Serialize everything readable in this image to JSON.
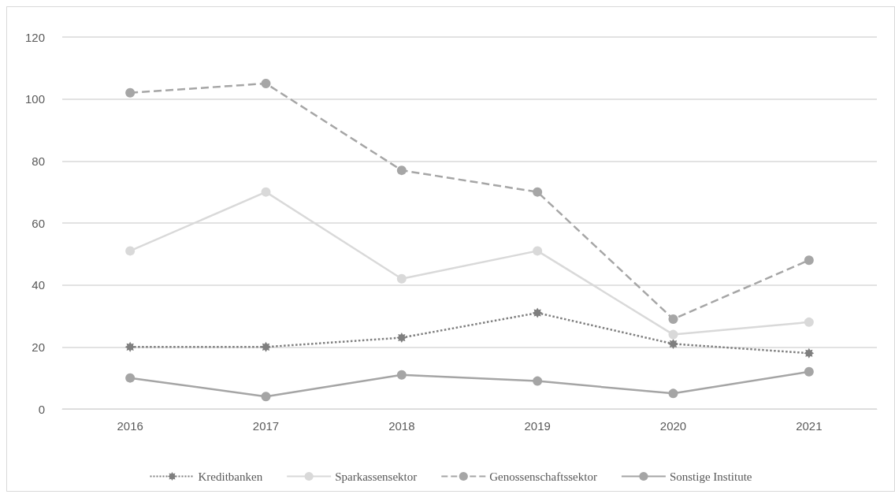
{
  "chart_data": {
    "type": "line",
    "categories": [
      "2016",
      "2017",
      "2018",
      "2019",
      "2020",
      "2021"
    ],
    "series": [
      {
        "name": "Kreditbanken",
        "color": "#7f7f7f",
        "values": [
          20,
          20,
          23,
          31,
          21,
          18
        ],
        "line_style": "dotted",
        "marker": "star"
      },
      {
        "name": "Sparkassensektor",
        "color": "#d9d9d9",
        "values": [
          51,
          70,
          42,
          51,
          24,
          28
        ],
        "line_style": "solid",
        "marker": "circle"
      },
      {
        "name": "Genossenschaftssektor",
        "color": "#a6a6a6",
        "values": [
          102,
          105,
          77,
          70,
          29,
          48
        ],
        "line_style": "dashed",
        "marker": "circle"
      },
      {
        "name": "Sonstige Institute",
        "color": "#a5a5a5",
        "values": [
          10,
          4,
          11,
          9,
          5,
          12
        ],
        "line_style": "solid",
        "marker": "circle"
      }
    ],
    "ylim": [
      0,
      120
    ],
    "yticks": [
      0,
      20,
      40,
      60,
      80,
      100,
      120
    ],
    "grid": "y",
    "legend": "bottom"
  }
}
